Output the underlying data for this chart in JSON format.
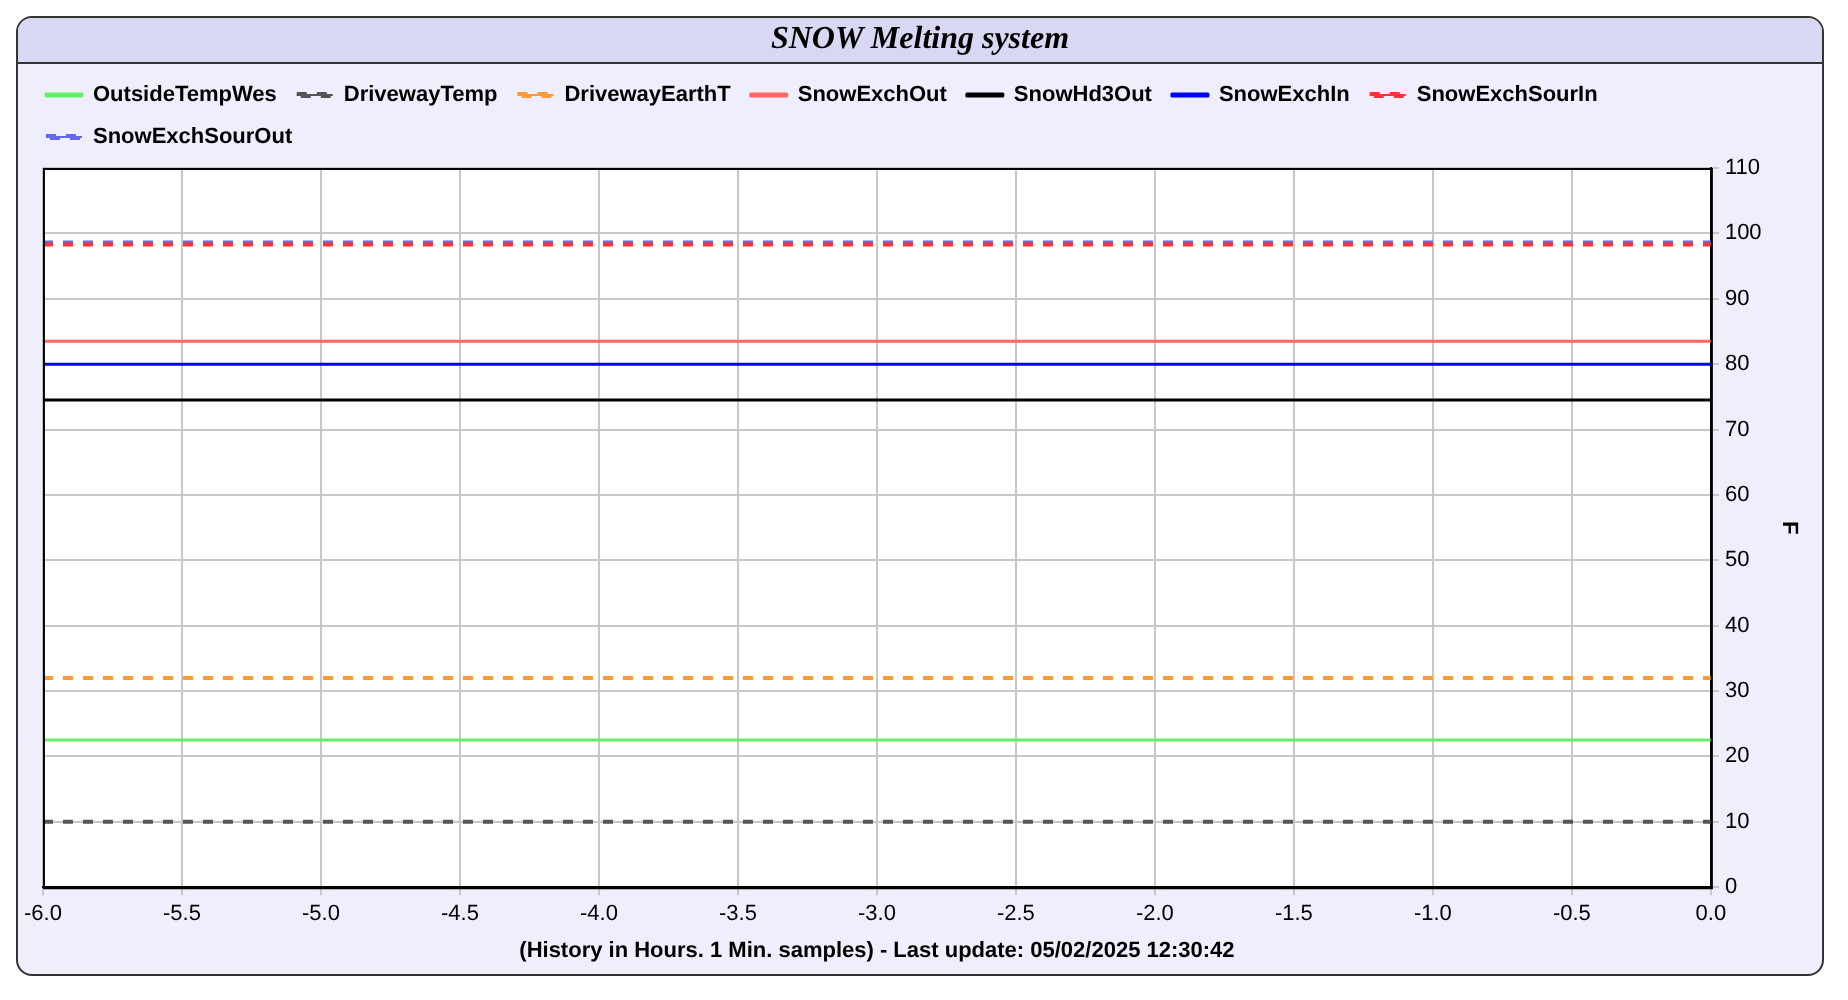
{
  "chart_data": {
    "type": "line",
    "title": "SNOW Melting system",
    "xlabel": "(History in Hours. 1 Min. samples) - Last update: 05/02/2025 12:30:42",
    "ylabel": "F",
    "x": [
      -6,
      0
    ],
    "series": [
      {
        "name": "OutsideTempWes",
        "color": "#66ee66",
        "values": [
          22.5,
          22.5
        ],
        "line_style": "solid"
      },
      {
        "name": "DrivewayTemp",
        "color": "#555555",
        "values": [
          10,
          10
        ],
        "line_style": "dashed"
      },
      {
        "name": "DrivewayEarthT",
        "color": "#ff9933",
        "values": [
          32,
          32
        ],
        "line_style": "dashed"
      },
      {
        "name": "SnowExchOut",
        "color": "#ff6666",
        "values": [
          83.5,
          83.5
        ],
        "line_style": "solid"
      },
      {
        "name": "SnowHd3Out",
        "color": "#000000",
        "values": [
          74.5,
          74.5
        ],
        "line_style": "solid"
      },
      {
        "name": "SnowExchIn",
        "color": "#0000ff",
        "values": [
          80,
          80
        ],
        "line_style": "solid"
      },
      {
        "name": "SnowExchSourIn",
        "color": "#ff3333",
        "values": [
          98.3,
          98.3
        ],
        "line_style": "dashed"
      },
      {
        "name": "SnowExchSourOut",
        "color": "#6666ee",
        "values": [
          98.6,
          98.6
        ],
        "line_style": "dashed"
      }
    ],
    "xlim": [
      -6,
      0
    ],
    "xticks": [
      {
        "value": -6,
        "label": "-6.0"
      },
      {
        "value": -5.5,
        "label": "-5.5"
      },
      {
        "value": -5,
        "label": "-5.0"
      },
      {
        "value": -4.5,
        "label": "-4.5"
      },
      {
        "value": -4,
        "label": "-4.0"
      },
      {
        "value": -3.5,
        "label": "-3.5"
      },
      {
        "value": -3,
        "label": "-3.0"
      },
      {
        "value": -2.5,
        "label": "-2.5"
      },
      {
        "value": -2,
        "label": "-2.0"
      },
      {
        "value": -1.5,
        "label": "-1.5"
      },
      {
        "value": -1,
        "label": "-1.0"
      },
      {
        "value": -0.5,
        "label": "-0.5"
      },
      {
        "value": 0,
        "label": "0.0"
      }
    ],
    "ylim": [
      0,
      110
    ],
    "yticks": [
      0,
      10,
      20,
      30,
      40,
      50,
      60,
      70,
      80,
      90,
      100,
      110
    ],
    "grid": true,
    "legend": "top",
    "marker": "none"
  }
}
